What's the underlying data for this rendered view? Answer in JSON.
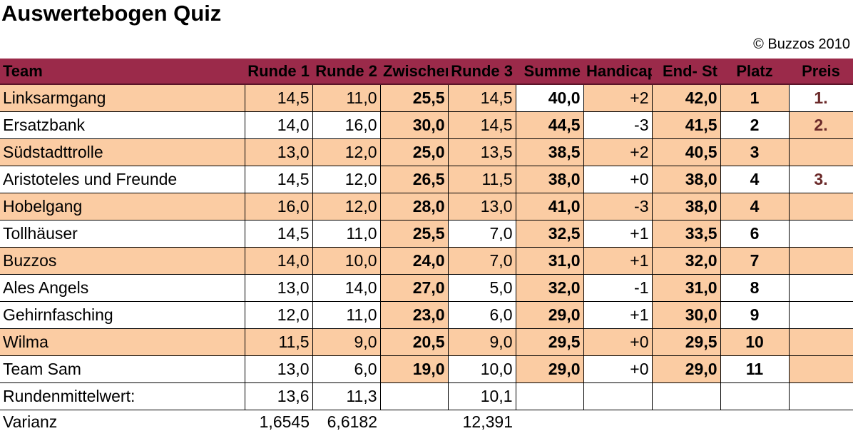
{
  "title": "Auswertebogen Quiz",
  "copyright": "© Buzzos 2010",
  "colors": {
    "header": "#9b2a4a",
    "highlight": "#fbcca3",
    "prize": "#6b2a2a"
  },
  "headers": [
    "Team",
    "Runde 1",
    "Runde 2",
    "Zwischensumme",
    "Runde 3",
    "Summe",
    "Handicap",
    "End-  St",
    "Platz",
    "Preis"
  ],
  "rows": [
    {
      "team": "Linksarmgang",
      "r1": "14,5",
      "r2": "11,0",
      "zw": "25,5",
      "r3": "14,5",
      "summe": "40,0",
      "handicap": "+2",
      "end": "42,0",
      "platz": "1",
      "preis": "1."
    },
    {
      "team": "Ersatzbank",
      "r1": "14,0",
      "r2": "16,0",
      "zw": "30,0",
      "r3": "14,5",
      "summe": "44,5",
      "handicap": "-3",
      "end": "41,5",
      "platz": "2",
      "preis": "2."
    },
    {
      "team": "Südstadttrolle",
      "r1": "13,0",
      "r2": "12,0",
      "zw": "25,0",
      "r3": "13,5",
      "summe": "38,5",
      "handicap": "+2",
      "end": "40,5",
      "platz": "3",
      "preis": ""
    },
    {
      "team": "Aristoteles und Freunde",
      "r1": "14,5",
      "r2": "12,0",
      "zw": "26,5",
      "r3": "11,5",
      "summe": "38,0",
      "handicap": "+0",
      "end": "38,0",
      "platz": "4",
      "preis": "3."
    },
    {
      "team": "Hobelgang",
      "r1": "16,0",
      "r2": "12,0",
      "zw": "28,0",
      "r3": "13,0",
      "summe": "41,0",
      "handicap": "-3",
      "end": "38,0",
      "platz": "4",
      "preis": ""
    },
    {
      "team": "Tollhäuser",
      "r1": "14,5",
      "r2": "11,0",
      "zw": "25,5",
      "r3": "7,0",
      "summe": "32,5",
      "handicap": "+1",
      "end": "33,5",
      "platz": "6",
      "preis": ""
    },
    {
      "team": "Buzzos",
      "r1": "14,0",
      "r2": "10,0",
      "zw": "24,0",
      "r3": "7,0",
      "summe": "31,0",
      "handicap": "+1",
      "end": "32,0",
      "platz": "7",
      "preis": ""
    },
    {
      "team": "Ales Angels",
      "r1": "13,0",
      "r2": "14,0",
      "zw": "27,0",
      "r3": "5,0",
      "summe": "32,0",
      "handicap": "-1",
      "end": "31,0",
      "platz": "8",
      "preis": ""
    },
    {
      "team": "Gehirnfasching",
      "r1": "12,0",
      "r2": "11,0",
      "zw": "23,0",
      "r3": "6,0",
      "summe": "29,0",
      "handicap": "+1",
      "end": "30,0",
      "platz": "9",
      "preis": ""
    },
    {
      "team": "Wilma",
      "r1": "11,5",
      "r2": "9,0",
      "zw": "20,5",
      "r3": "9,0",
      "summe": "29,5",
      "handicap": "+0",
      "end": "29,5",
      "platz": "10",
      "preis": ""
    },
    {
      "team": "Team Sam",
      "r1": "13,0",
      "r2": "6,0",
      "zw": "19,0",
      "r3": "10,0",
      "summe": "29,0",
      "handicap": "+0",
      "end": "29,0",
      "platz": "11",
      "preis": ""
    }
  ],
  "mean": {
    "label": "Rundenmittelwert:",
    "r1": "13,6",
    "r2": "11,3",
    "r3": "10,1"
  },
  "variance": {
    "label": "Varianz",
    "r1": "1,6545",
    "r2": "6,6182",
    "r3": "12,391"
  }
}
